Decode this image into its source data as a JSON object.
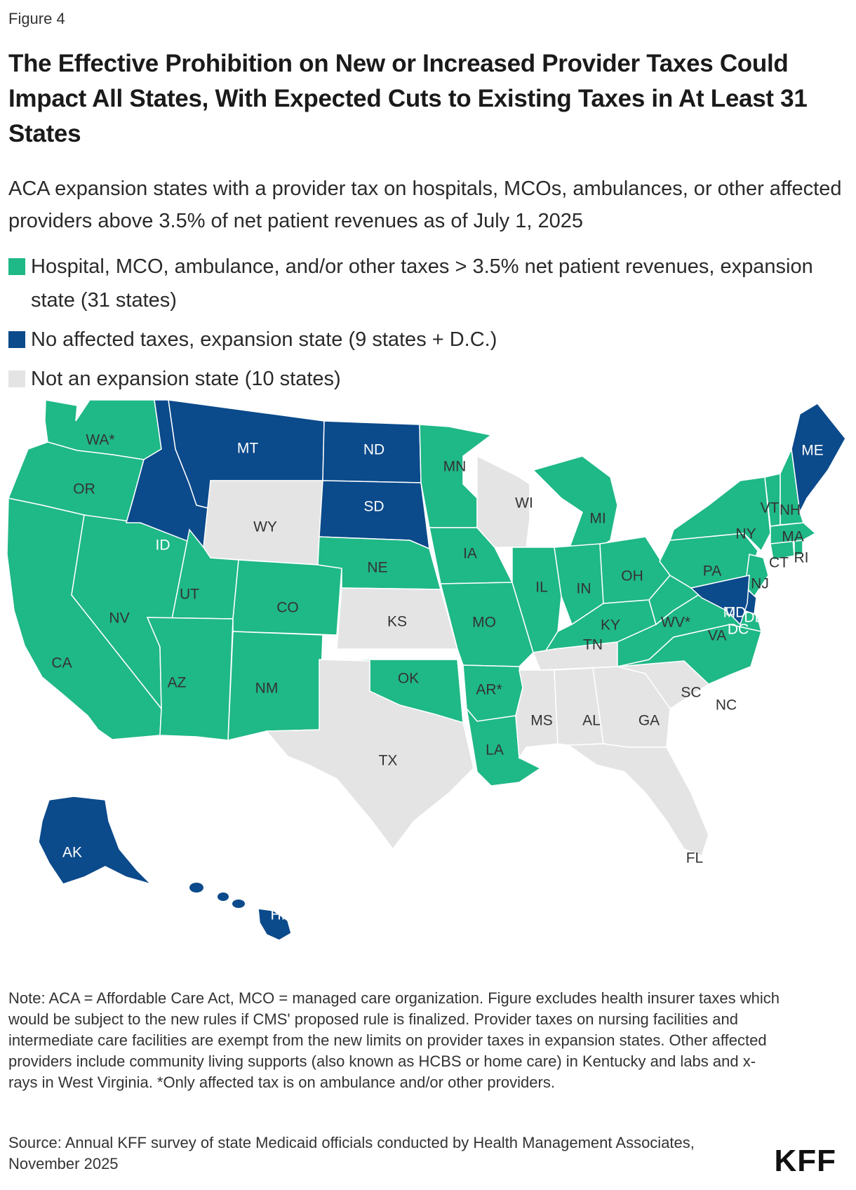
{
  "figure_label": "Figure 4",
  "title": "The Effective Prohibition on New or Increased Provider Taxes Could Impact All States, With Expected Cuts to Existing Taxes in At Least 31 States",
  "subtitle": "ACA expansion states with a provider tax on hospitals, MCOs, ambulances, or other affected providers above 3.5% of net patient revenues as of July 1, 2025",
  "colors": {
    "green": "#1fb887",
    "blue": "#0b4a8b",
    "gray": "#e4e4e4",
    "border": "#ffffff"
  },
  "legend": [
    {
      "label": "Hospital, MCO, ambulance, and/or other taxes > 3.5% net patient revenues, expansion state (31 states)",
      "category": "green"
    },
    {
      "label": "No affected taxes, expansion state (9 states + D.C.)",
      "category": "blue"
    },
    {
      "label": "Not an expansion state (10 states)",
      "category": "gray"
    }
  ],
  "states": [
    {
      "abbr": "WA*",
      "category": "green"
    },
    {
      "abbr": "OR",
      "category": "green"
    },
    {
      "abbr": "CA",
      "category": "green"
    },
    {
      "abbr": "NV",
      "category": "green"
    },
    {
      "abbr": "ID",
      "category": "blue"
    },
    {
      "abbr": "MT",
      "category": "blue"
    },
    {
      "abbr": "WY",
      "category": "gray"
    },
    {
      "abbr": "UT",
      "category": "green"
    },
    {
      "abbr": "AZ",
      "category": "green"
    },
    {
      "abbr": "CO",
      "category": "green"
    },
    {
      "abbr": "NM",
      "category": "green"
    },
    {
      "abbr": "ND",
      "category": "blue"
    },
    {
      "abbr": "SD",
      "category": "blue"
    },
    {
      "abbr": "NE",
      "category": "green"
    },
    {
      "abbr": "KS",
      "category": "gray"
    },
    {
      "abbr": "OK",
      "category": "green"
    },
    {
      "abbr": "TX",
      "category": "gray"
    },
    {
      "abbr": "MN",
      "category": "green"
    },
    {
      "abbr": "IA",
      "category": "green"
    },
    {
      "abbr": "MO",
      "category": "green"
    },
    {
      "abbr": "AR*",
      "category": "green"
    },
    {
      "abbr": "LA",
      "category": "green"
    },
    {
      "abbr": "WI",
      "category": "gray"
    },
    {
      "abbr": "IL",
      "category": "green"
    },
    {
      "abbr": "MI",
      "category": "green"
    },
    {
      "abbr": "IN",
      "category": "green"
    },
    {
      "abbr": "OH",
      "category": "green"
    },
    {
      "abbr": "KY",
      "category": "green"
    },
    {
      "abbr": "TN",
      "category": "gray"
    },
    {
      "abbr": "MS",
      "category": "gray"
    },
    {
      "abbr": "AL",
      "category": "gray"
    },
    {
      "abbr": "GA",
      "category": "gray"
    },
    {
      "abbr": "FL",
      "category": "gray"
    },
    {
      "abbr": "SC",
      "category": "gray"
    },
    {
      "abbr": "NC",
      "category": "green"
    },
    {
      "abbr": "VA",
      "category": "green"
    },
    {
      "abbr": "WV*",
      "category": "green"
    },
    {
      "abbr": "PA",
      "category": "green"
    },
    {
      "abbr": "NY",
      "category": "green"
    },
    {
      "abbr": "NJ",
      "category": "green"
    },
    {
      "abbr": "DE",
      "category": "blue"
    },
    {
      "abbr": "MD",
      "category": "blue"
    },
    {
      "abbr": "DC",
      "category": "blue"
    },
    {
      "abbr": "CT",
      "category": "green"
    },
    {
      "abbr": "RI",
      "category": "green"
    },
    {
      "abbr": "MA",
      "category": "green"
    },
    {
      "abbr": "VT",
      "category": "green"
    },
    {
      "abbr": "NH",
      "category": "green"
    },
    {
      "abbr": "ME",
      "category": "blue"
    },
    {
      "abbr": "AK",
      "category": "blue"
    },
    {
      "abbr": "HI",
      "category": "blue"
    }
  ],
  "note": "Note: ACA = Affordable Care Act, MCO = managed care organization. Figure excludes health insurer taxes which would be subject to the new rules if CMS' proposed rule is finalized. Provider taxes on nursing facilities and intermediate care facilities are exempt from the new limits on provider taxes in expansion states. Other affected providers include community living supports (also known as HCBS or home care) in Kentucky and labs and x-rays in West Virginia. *Only affected tax is on ambulance and/or other providers.",
  "source": "Source: Annual KFF survey of state Medicaid officials conducted by Health Management Associates, November 2025",
  "logo": "KFF"
}
